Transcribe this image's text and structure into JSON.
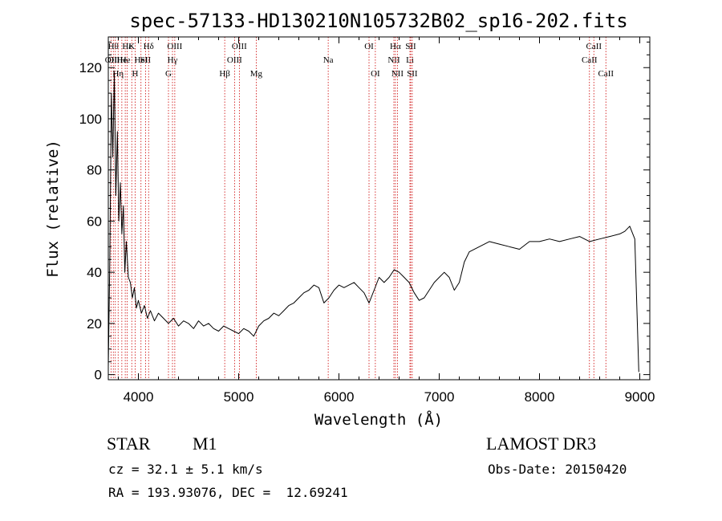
{
  "chart_data": {
    "type": "line",
    "title": "spec-57133-HD130210N105732B02_sp16-202.fits",
    "xlabel": "Wavelength (Å)",
    "ylabel": "Flux (relative)",
    "xlim": [
      3700,
      9100
    ],
    "ylim": [
      -2,
      132
    ],
    "x_ticks": [
      4000,
      5000,
      6000,
      7000,
      8000,
      9000
    ],
    "y_ticks": [
      0,
      20,
      40,
      60,
      80,
      100,
      120
    ],
    "grid": false,
    "series": [
      {
        "x": [
          3700,
          3715,
          3730,
          3745,
          3760,
          3775,
          3790,
          3805,
          3820,
          3835,
          3850,
          3865,
          3880,
          3900,
          3920,
          3940,
          3960,
          3980,
          4000,
          4030,
          4060,
          4090,
          4120,
          4160,
          4200,
          4250,
          4300,
          4350,
          4400,
          4450,
          4500,
          4550,
          4600,
          4650,
          4700,
          4750,
          4800,
          4850,
          4900,
          4950,
          5000,
          5050,
          5100,
          5150,
          5200,
          5250,
          5300,
          5350,
          5400,
          5450,
          5500,
          5550,
          5600,
          5650,
          5700,
          5750,
          5800,
          5850,
          5900,
          5950,
          6000,
          6050,
          6100,
          6150,
          6200,
          6250,
          6300,
          6350,
          6400,
          6450,
          6500,
          6550,
          6600,
          6650,
          6700,
          6750,
          6800,
          6850,
          6900,
          6950,
          7000,
          7050,
          7100,
          7150,
          7200,
          7250,
          7300,
          7400,
          7500,
          7600,
          7700,
          7800,
          7900,
          8000,
          8100,
          8200,
          8300,
          8400,
          8500,
          8600,
          8700,
          8800,
          8850,
          8900,
          8950,
          8990
        ],
        "y": [
          3,
          45,
          110,
          85,
          118,
          70,
          95,
          60,
          75,
          55,
          66,
          40,
          52,
          38,
          36,
          30,
          34,
          26,
          29,
          24,
          27,
          22,
          25,
          21,
          24,
          22,
          20,
          22,
          19,
          21,
          20,
          18,
          21,
          19,
          20,
          18,
          17,
          19,
          18,
          17,
          16,
          18,
          17,
          15,
          19,
          21,
          22,
          24,
          23,
          25,
          27,
          28,
          30,
          32,
          33,
          35,
          34,
          28,
          30,
          33,
          35,
          34,
          35,
          36,
          34,
          32,
          28,
          33,
          38,
          36,
          38,
          41,
          40,
          38,
          36,
          32,
          29,
          30,
          33,
          36,
          38,
          40,
          38,
          33,
          36,
          44,
          48,
          50,
          52,
          51,
          50,
          49,
          52,
          52,
          53,
          52,
          53,
          54,
          52,
          53,
          54,
          55,
          56,
          58,
          53,
          1
        ]
      }
    ],
    "lines": [
      {
        "x": 3727,
        "label": "OII",
        "row": 2
      },
      {
        "x": 3750,
        "label": "Hθ",
        "row": 1
      },
      {
        "x": 3770,
        "label": "OIII",
        "row": 2
      },
      {
        "x": 3798,
        "label": "Hη",
        "row": 3
      },
      {
        "x": 3835,
        "label": "He",
        "row": 2
      },
      {
        "x": 3869,
        "label": "He",
        "row": 2
      },
      {
        "x": 3889,
        "label": "Hε",
        "row": 1
      },
      {
        "x": 3934,
        "label": "K",
        "row": 1
      },
      {
        "x": 3968,
        "label": "H",
        "row": 3
      },
      {
        "x": 4026,
        "label": "HeI",
        "row": 2
      },
      {
        "x": 4072,
        "label": "SII",
        "row": 2
      },
      {
        "x": 4102,
        "label": "Hδ",
        "row": 1
      },
      {
        "x": 4300,
        "label": "G",
        "row": 3
      },
      {
        "x": 4340,
        "label": "Hγ",
        "row": 2
      },
      {
        "x": 4363,
        "label": "OIII",
        "row": 1
      },
      {
        "x": 4861,
        "label": "Hβ",
        "row": 3
      },
      {
        "x": 4959,
        "label": "OIII",
        "row": 2
      },
      {
        "x": 5007,
        "label": "OIII",
        "row": 1
      },
      {
        "x": 5175,
        "label": "Mg",
        "row": 3
      },
      {
        "x": 5893,
        "label": "Na",
        "row": 2
      },
      {
        "x": 6300,
        "label": "OI",
        "row": 1
      },
      {
        "x": 6363,
        "label": "OI",
        "row": 3
      },
      {
        "x": 6548,
        "label": "NII",
        "row": 2
      },
      {
        "x": 6563,
        "label": "Hα",
        "row": 1
      },
      {
        "x": 6583,
        "label": "NII",
        "row": 3
      },
      {
        "x": 6708,
        "label": "Li",
        "row": 2
      },
      {
        "x": 6716,
        "label": "SII",
        "row": 1
      },
      {
        "x": 6731,
        "label": "SII",
        "row": 3
      },
      {
        "x": 8498,
        "label": "CaII",
        "row": 2
      },
      {
        "x": 8542,
        "label": "CaII",
        "row": 1
      },
      {
        "x": 8662,
        "label": "CaII",
        "row": 3
      }
    ]
  },
  "info": {
    "object_class": "STAR",
    "subclass": "M1",
    "survey": "LAMOST DR3",
    "cz": "cz = 32.1 ± 5.1 km/s",
    "obs_date": "Obs-Date: 20150420",
    "coords": "RA = 193.93076, DEC =  12.69241"
  },
  "colors": {
    "line_marker": "#cc0000",
    "spectrum": "#000000",
    "axes": "#000000"
  }
}
